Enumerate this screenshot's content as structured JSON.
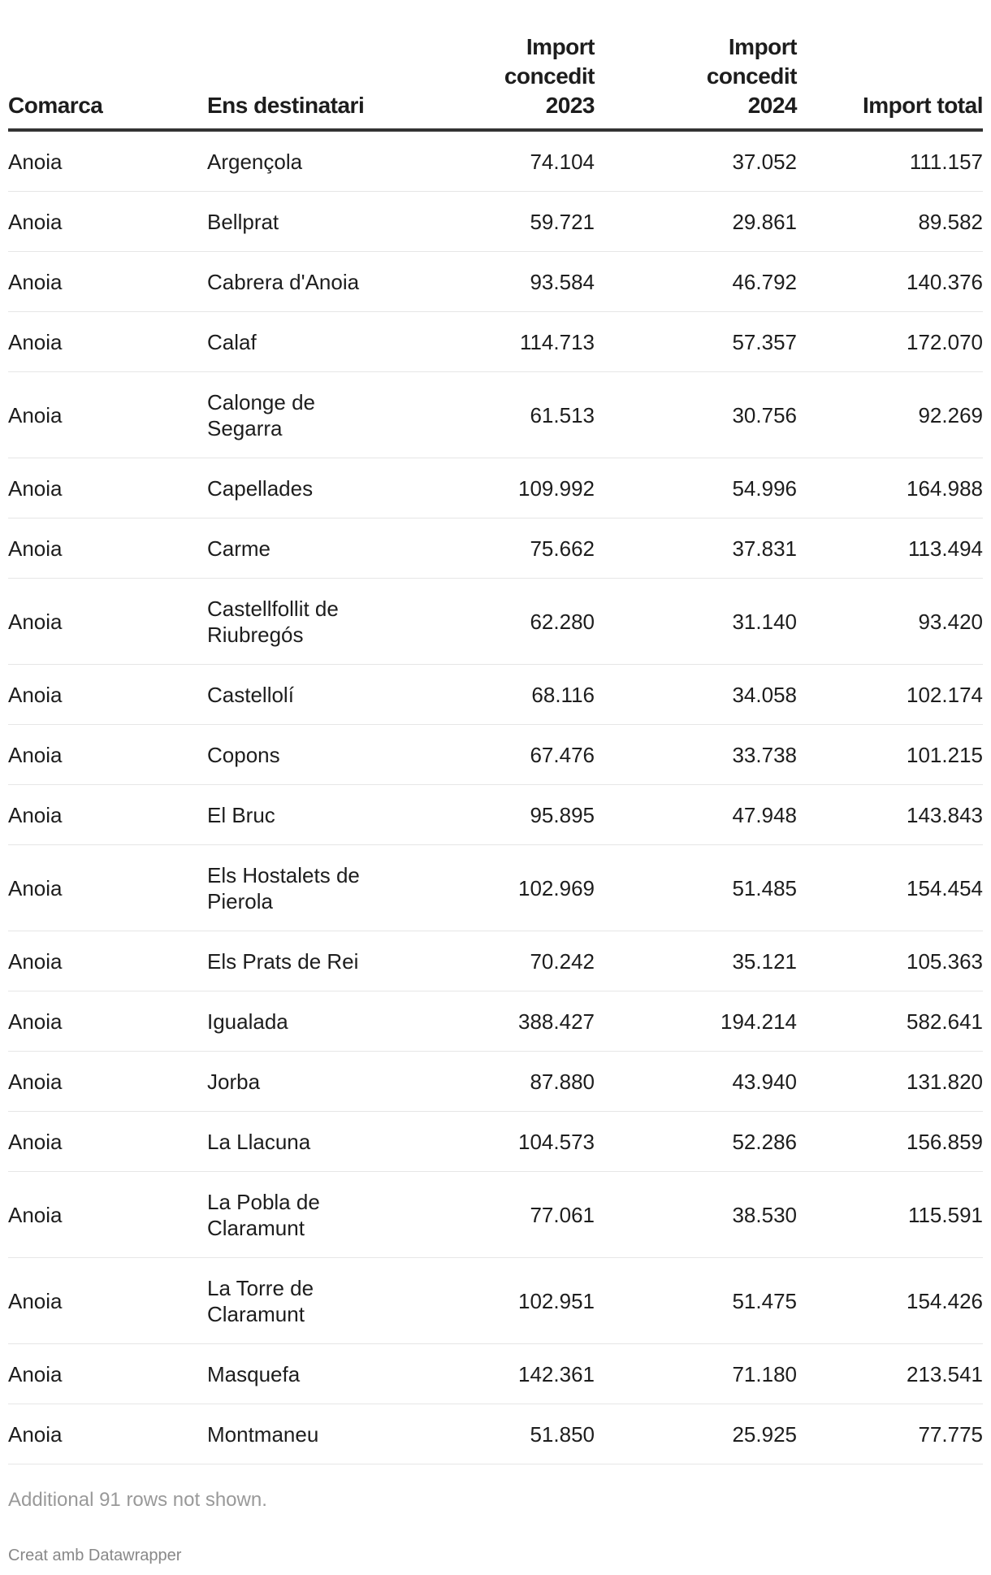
{
  "table": {
    "headers": [
      "Comarca",
      "Ens destinatari",
      "Import concedit 2023",
      "Import concedit 2024",
      "Import total"
    ],
    "rows": [
      [
        "Anoia",
        "Argençola",
        "74.104",
        "37.052",
        "111.157"
      ],
      [
        "Anoia",
        "Bellprat",
        "59.721",
        "29.861",
        "89.582"
      ],
      [
        "Anoia",
        "Cabrera d'Anoia",
        "93.584",
        "46.792",
        "140.376"
      ],
      [
        "Anoia",
        "Calaf",
        "114.713",
        "57.357",
        "172.070"
      ],
      [
        "Anoia",
        "Calonge de Segarra",
        "61.513",
        "30.756",
        "92.269"
      ],
      [
        "Anoia",
        "Capellades",
        "109.992",
        "54.996",
        "164.988"
      ],
      [
        "Anoia",
        "Carme",
        "75.662",
        "37.831",
        "113.494"
      ],
      [
        "Anoia",
        "Castellfollit de Riubregós",
        "62.280",
        "31.140",
        "93.420"
      ],
      [
        "Anoia",
        "Castellolí",
        "68.116",
        "34.058",
        "102.174"
      ],
      [
        "Anoia",
        "Copons",
        "67.476",
        "33.738",
        "101.215"
      ],
      [
        "Anoia",
        "El Bruc",
        "95.895",
        "47.948",
        "143.843"
      ],
      [
        "Anoia",
        "Els Hostalets de Pierola",
        "102.969",
        "51.485",
        "154.454"
      ],
      [
        "Anoia",
        "Els Prats de Rei",
        "70.242",
        "35.121",
        "105.363"
      ],
      [
        "Anoia",
        "Igualada",
        "388.427",
        "194.214",
        "582.641"
      ],
      [
        "Anoia",
        "Jorba",
        "87.880",
        "43.940",
        "131.820"
      ],
      [
        "Anoia",
        "La Llacuna",
        "104.573",
        "52.286",
        "156.859"
      ],
      [
        "Anoia",
        "La Pobla de Claramunt",
        "77.061",
        "38.530",
        "115.591"
      ],
      [
        "Anoia",
        "La Torre de Claramunt",
        "102.951",
        "51.475",
        "154.426"
      ],
      [
        "Anoia",
        "Masquefa",
        "142.361",
        "71.180",
        "213.541"
      ],
      [
        "Anoia",
        "Montmaneu",
        "51.850",
        "25.925",
        "77.775"
      ]
    ]
  },
  "footer": {
    "notes": "Additional 91 rows not shown.",
    "credit": "Creat amb Datawrapper"
  }
}
